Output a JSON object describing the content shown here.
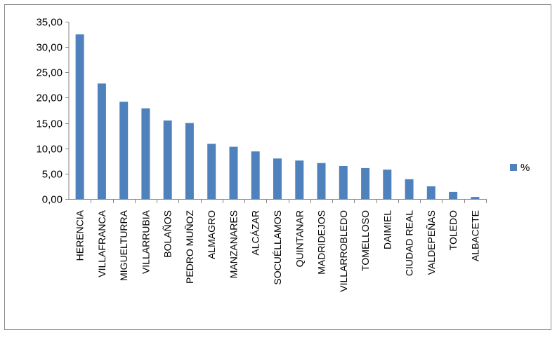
{
  "chart_data": {
    "type": "bar",
    "title": "",
    "xlabel": "",
    "ylabel": "",
    "ylim": [
      0,
      35
    ],
    "yticks": [
      "0,00",
      "5,00",
      "10,00",
      "15,00",
      "20,00",
      "25,00",
      "30,00",
      "35,00"
    ],
    "grid": false,
    "legend_position": "right",
    "categories": [
      "HERENCIA",
      "VILLAFRANCA",
      "MIGUELTURRA",
      "VILLARRUBIA",
      "BOLAÑOS",
      "PEDRO MUÑOZ",
      "ALMAGRO",
      "MANZANARES",
      "ALCÁZAR",
      "SOCUÉLLAMOS",
      "QUINTANAR",
      "MADRIDEJOS",
      "VILLARROBLEDO",
      "TOMELLOSO",
      "DAIMIEL",
      "CIUDAD REAL",
      "VALDEPEÑAS",
      "TOLEDO",
      "ALBACETE"
    ],
    "series": [
      {
        "name": "%",
        "color": "#4f81bd",
        "values": [
          32.5,
          22.8,
          19.2,
          17.9,
          15.5,
          15.0,
          10.9,
          10.3,
          9.4,
          8.0,
          7.6,
          7.1,
          6.5,
          6.1,
          5.8,
          3.9,
          2.5,
          1.4,
          0.4
        ]
      }
    ]
  }
}
